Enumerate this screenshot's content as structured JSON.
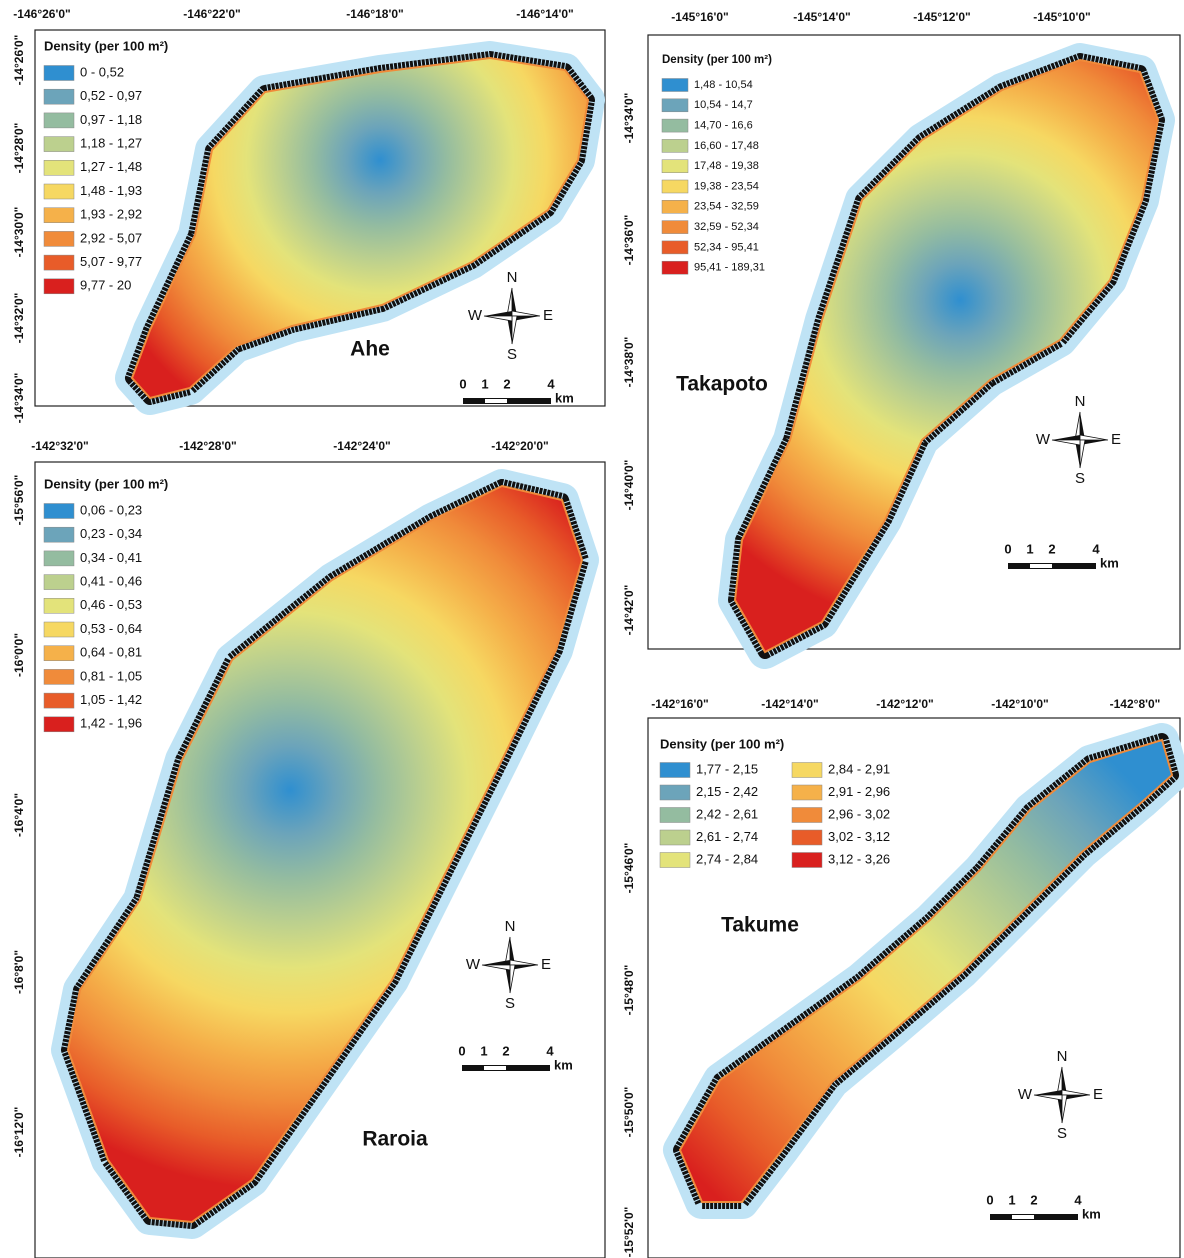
{
  "panels": [
    {
      "name": "Ahe",
      "legend_title": "Density (per 100 m²)",
      "legend": [
        {
          "label": "0 - 0,52",
          "color": "#2f8fd0"
        },
        {
          "label": "0,52 - 0,97",
          "color": "#6ca4ba"
        },
        {
          "label": "0,97 - 1,18",
          "color": "#94bca0"
        },
        {
          "label": "1,18 - 1,27",
          "color": "#bcd08e"
        },
        {
          "label": "1,27 - 1,48",
          "color": "#e3e37a"
        },
        {
          "label": "1,48 - 1,93",
          "color": "#f6d862"
        },
        {
          "label": "1,93 - 2,92",
          "color": "#f5b14a"
        },
        {
          "label": "2,92 - 5,07",
          "color": "#f08b3a"
        },
        {
          "label": "5,07 - 9,77",
          "color": "#e85c29"
        },
        {
          "label": "9,77 - 20",
          "color": "#d9201e"
        }
      ],
      "lon_labels": [
        "-146°26'0\"",
        "-146°22'0\"",
        "-146°18'0\"",
        "-146°14'0\""
      ],
      "lat_labels": [
        "-14°26'0\"",
        "-14°28'0\"",
        "-14°30'0\"",
        "-14°32'0\"",
        "-14°34'0\""
      ],
      "compass": {
        "n": "N",
        "s": "S",
        "w": "W",
        "e": "E"
      },
      "scale": {
        "labels": [
          "0",
          "1",
          "2",
          "4"
        ],
        "unit": "km"
      }
    },
    {
      "name": "Takapoto",
      "legend_title": "Density (per 100 m²)",
      "legend": [
        {
          "label": "1,48 - 10,54",
          "color": "#2f8fd0"
        },
        {
          "label": "10,54 - 14,7",
          "color": "#6ca4ba"
        },
        {
          "label": "14,70 - 16,6",
          "color": "#94bca0"
        },
        {
          "label": "16,60 - 17,48",
          "color": "#bcd08e"
        },
        {
          "label": "17,48 - 19,38",
          "color": "#e3e37a"
        },
        {
          "label": "19,38 - 23,54",
          "color": "#f6d862"
        },
        {
          "label": "23,54 - 32,59",
          "color": "#f5b14a"
        },
        {
          "label": "32,59 - 52,34",
          "color": "#f08b3a"
        },
        {
          "label": "52,34 - 95,41",
          "color": "#e85c29"
        },
        {
          "label": "95,41 - 189,31",
          "color": "#d9201e"
        }
      ],
      "lon_labels": [
        "-145°16'0\"",
        "-145°14'0\"",
        "-145°12'0\"",
        "-145°10'0\""
      ],
      "lat_labels": [
        "-14°34'0\"",
        "-14°36'0\"",
        "-14°38'0\"",
        "-14°40'0\"",
        "-14°42'0\""
      ],
      "compass": {
        "n": "N",
        "s": "S",
        "w": "W",
        "e": "E"
      },
      "scale": {
        "labels": [
          "0",
          "1",
          "2",
          "4"
        ],
        "unit": "km"
      }
    },
    {
      "name": "Raroia",
      "legend_title": "Density (per 100 m²)",
      "legend": [
        {
          "label": "0,06 - 0,23",
          "color": "#2f8fd0"
        },
        {
          "label": "0,23 - 0,34",
          "color": "#6ca4ba"
        },
        {
          "label": "0,34 - 0,41",
          "color": "#94bca0"
        },
        {
          "label": "0,41 - 0,46",
          "color": "#bcd08e"
        },
        {
          "label": "0,46 - 0,53",
          "color": "#e3e37a"
        },
        {
          "label": "0,53 - 0,64",
          "color": "#f6d862"
        },
        {
          "label": "0,64 - 0,81",
          "color": "#f5b14a"
        },
        {
          "label": "0,81 - 1,05",
          "color": "#f08b3a"
        },
        {
          "label": "1,05 - 1,42",
          "color": "#e85c29"
        },
        {
          "label": "1,42 - 1,96",
          "color": "#d9201e"
        }
      ],
      "lon_labels": [
        "-142°32'0\"",
        "-142°28'0\"",
        "-142°24'0\"",
        "-142°20'0\""
      ],
      "lat_labels": [
        "-15°56'0\"",
        "-16°0'0\"",
        "-16°4'0\"",
        "-16°8'0\"",
        "-16°12'0\""
      ],
      "compass": {
        "n": "N",
        "s": "S",
        "w": "W",
        "e": "E"
      },
      "scale": {
        "labels": [
          "0",
          "1",
          "2",
          "4"
        ],
        "unit": "km"
      }
    },
    {
      "name": "Takume",
      "legend_title": "Density (per 100 m²)",
      "legend": [
        {
          "label": "1,77 - 2,15",
          "color": "#2f8fd0"
        },
        {
          "label": "2,15 - 2,42",
          "color": "#6ca4ba"
        },
        {
          "label": "2,42 - 2,61",
          "color": "#94bca0"
        },
        {
          "label": "2,61 - 2,74",
          "color": "#bcd08e"
        },
        {
          "label": "2,74 - 2,84",
          "color": "#e3e37a"
        },
        {
          "label": "2,84 - 2,91",
          "color": "#f6d862"
        },
        {
          "label": "2,91 - 2,96",
          "color": "#f5b14a"
        },
        {
          "label": "2,96 - 3,02",
          "color": "#f08b3a"
        },
        {
          "label": "3,02 - 3,12",
          "color": "#e85c29"
        },
        {
          "label": "3,12 - 3,26",
          "color": "#d9201e"
        }
      ],
      "lon_labels": [
        "-142°16'0\"",
        "-142°14'0\"",
        "-142°12'0\"",
        "-142°10'0\"",
        "-142°8'0\""
      ],
      "lat_labels": [
        "-15°46'0\"",
        "-15°48'0\"",
        "-15°50'0\"",
        "-15°52'0\""
      ],
      "compass": {
        "n": "N",
        "s": "S",
        "w": "W",
        "e": "E"
      },
      "scale": {
        "labels": [
          "0",
          "1",
          "2",
          "4"
        ],
        "unit": "km"
      }
    }
  ]
}
